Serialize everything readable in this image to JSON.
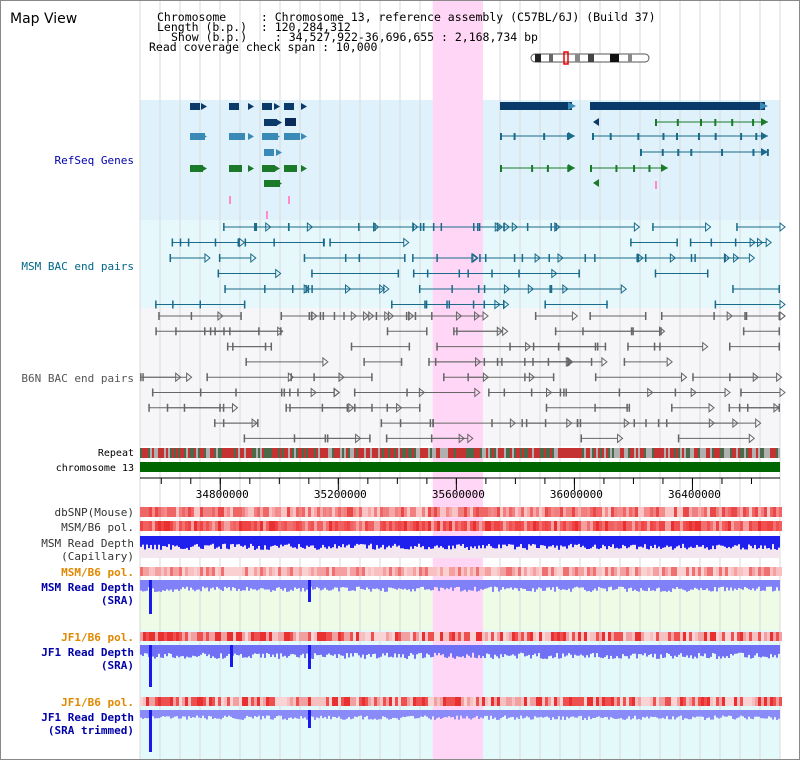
{
  "title": "Map View",
  "info": {
    "lines": [
      "Chromosome     : Chromosome 13, reference assembly (C57BL/6J) (Build 37)",
      "Length (b.p.)  : 120,284,312",
      "Show (b.p.)    : 34,527,922-36,696,655 : 2,168,734 bp",
      "Read coverage check span : 10,000"
    ]
  },
  "region": {
    "start": 34527922,
    "end": 36696655,
    "highlight_start": 35520000,
    "highlight_end": 35690000
  },
  "axis": {
    "ticks": [
      {
        "value": 34800000,
        "label": "34800000"
      },
      {
        "value": 35200000,
        "label": "35200000"
      },
      {
        "value": 35600000,
        "label": "35600000"
      },
      {
        "value": 36000000,
        "label": "36000000"
      },
      {
        "value": 36400000,
        "label": "36400000"
      }
    ]
  },
  "tracks": {
    "refseq": {
      "label": "RefSeq Genes",
      "color": "#0000aa"
    },
    "msm_bac": {
      "label": "MSM BAC end pairs",
      "color": "#006688"
    },
    "b6n_bac": {
      "label": "B6N BAC end pairs",
      "color": "#555555"
    },
    "repeat": {
      "label": "Repeat"
    },
    "chromosome": {
      "label": "chromosome 13"
    },
    "dbsnp": {
      "label": "dbSNP(Mouse)"
    },
    "msm_b6_pol": {
      "label": "MSM/B6 pol."
    },
    "msm_depth_cap": {
      "label1": "MSM Read Depth",
      "label2": "(Capillary)"
    },
    "msm_b6_pol2": {
      "label": "MSM/B6 pol."
    },
    "msm_depth_sra": {
      "label1": "MSM Read Depth",
      "label2": "(SRA)"
    },
    "jf1_b6_pol": {
      "label": "JF1/B6 pol."
    },
    "jf1_depth_sra": {
      "label1": "JF1 Read Depth",
      "label2": "(SRA)"
    },
    "jf1_b6_pol2": {
      "label": "JF1/B6 pol."
    },
    "jf1_depth_trim": {
      "label1": "JF1 Read Depth",
      "label2": "(SRA trimmed)"
    }
  },
  "colors": {
    "label_blue": "#0000aa",
    "label_orange": "#e08800",
    "label_gray": "#333333",
    "chrom_green": "#006600",
    "depth_blue": "#2222ee",
    "depth_light": "#8888ff",
    "highlight": "#ffd6f5"
  }
}
